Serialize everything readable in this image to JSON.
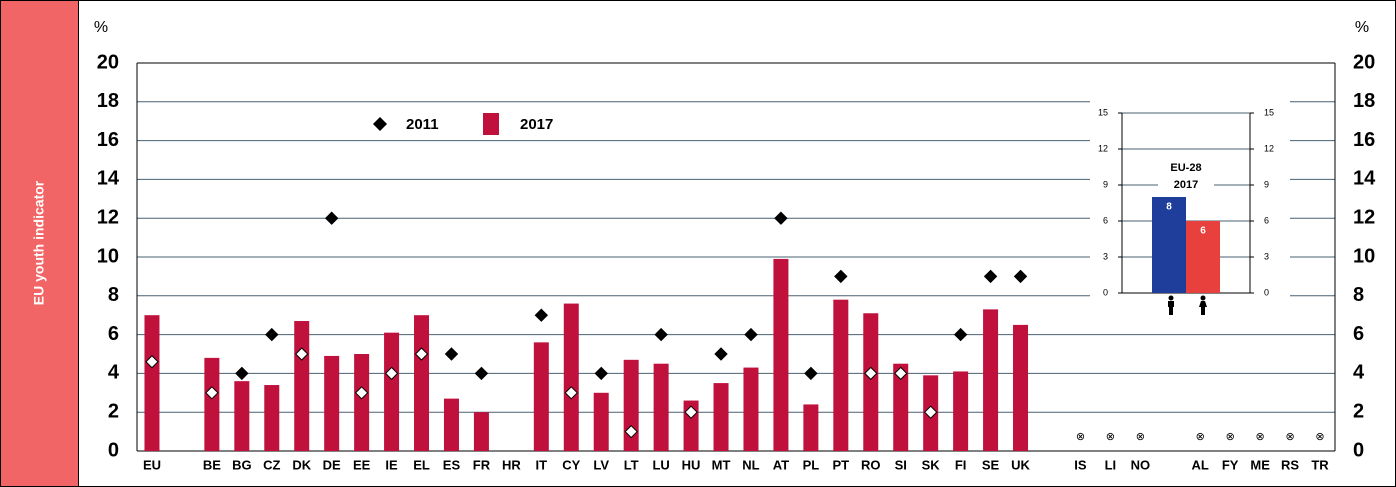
{
  "sidebar": "EU youth indicator",
  "chart_data": [
    {
      "type": "bar",
      "y_unit": "%",
      "categories": [
        "EU",
        null,
        "BE",
        "BG",
        "CZ",
        "DK",
        "DE",
        "EE",
        "IE",
        "EL",
        "ES",
        "FR",
        "HR",
        "IT",
        "CY",
        "LV",
        "LT",
        "LU",
        "HU",
        "MT",
        "NL",
        "AT",
        "PL",
        "PT",
        "RO",
        "SI",
        "SK",
        "FI",
        "SE",
        "UK",
        null,
        "IS",
        "LI",
        "NO",
        null,
        "AL",
        "FY",
        "ME",
        "RS",
        "TR"
      ],
      "category_markers": [
        null,
        null,
        null,
        null,
        null,
        null,
        null,
        null,
        null,
        null,
        null,
        null,
        null,
        null,
        null,
        null,
        null,
        null,
        null,
        null,
        null,
        null,
        null,
        null,
        null,
        null,
        null,
        null,
        null,
        null,
        null,
        "⊗",
        "⊗",
        "⊗",
        null,
        "⊗",
        "⊗",
        "⊗",
        "⊗",
        "⊗"
      ],
      "series": [
        {
          "name": "2011",
          "color": "#000000",
          "marker": "diamond",
          "values": [
            4.6,
            null,
            3,
            4,
            6,
            5,
            12,
            3,
            4,
            5,
            5,
            4,
            null,
            7,
            3,
            4,
            1,
            6,
            2,
            5,
            6,
            12,
            4,
            9,
            4,
            4,
            2,
            6,
            9,
            9,
            null,
            null,
            null,
            null,
            null,
            null,
            null,
            null,
            null,
            null
          ]
        },
        {
          "name": "2017",
          "color": "#c0103c",
          "marker": "bar",
          "values": [
            7,
            null,
            4.8,
            3.6,
            3.4,
            6.7,
            4.9,
            5,
            6.1,
            7,
            2.7,
            2,
            null,
            5.6,
            7.6,
            3,
            4.7,
            4.5,
            2.6,
            3.5,
            4.3,
            9.9,
            2.4,
            7.8,
            7.1,
            4.5,
            3.9,
            4.1,
            7.3,
            6.5,
            null,
            null,
            null,
            null,
            null,
            null,
            null,
            null,
            null,
            null
          ]
        }
      ],
      "ylim": [
        0,
        20
      ],
      "yticks": [
        0,
        2,
        4,
        6,
        8,
        10,
        12,
        14,
        16,
        18,
        20
      ],
      "grid": true
    },
    {
      "type": "bar",
      "title": "EU-28",
      "subtitle": "2017",
      "categories": [
        "male",
        "female"
      ],
      "values": [
        8,
        6
      ],
      "colors": [
        "#1f3e9b",
        "#e8403c"
      ],
      "ylim": [
        0,
        15
      ],
      "yticks": [
        0,
        3,
        6,
        9,
        12,
        15
      ],
      "grid": true
    }
  ]
}
